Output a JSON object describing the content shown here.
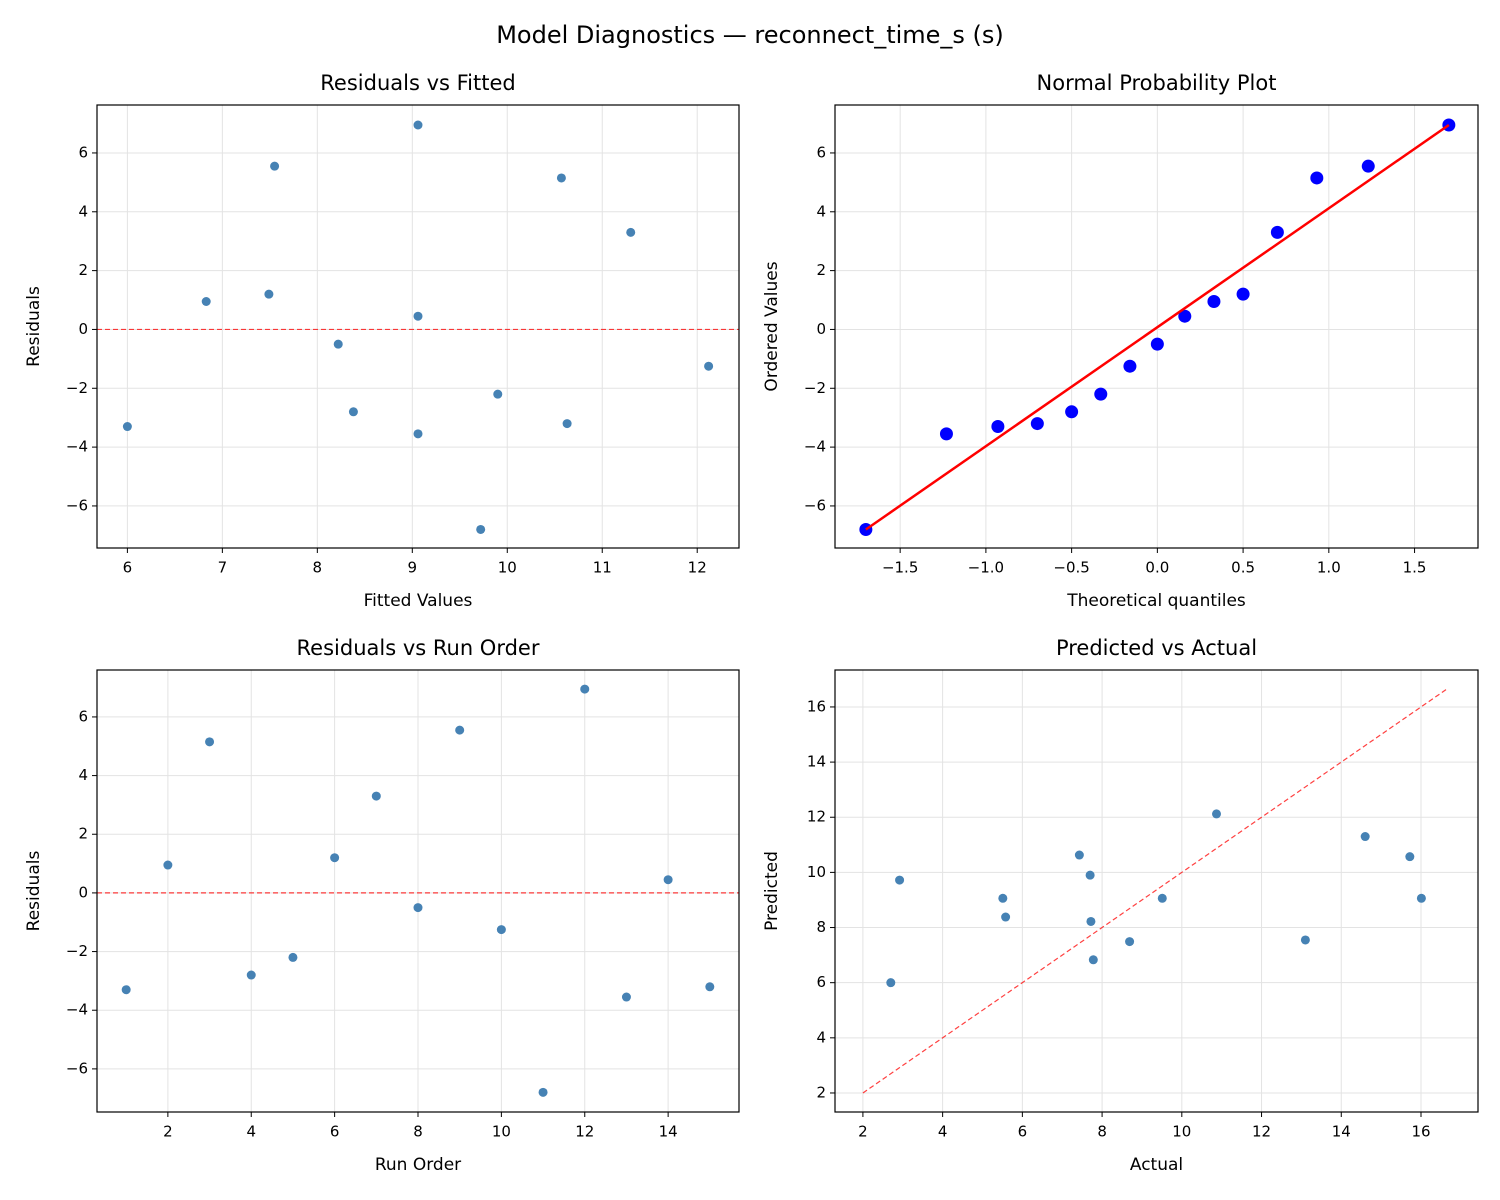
{
  "title": "Model Diagnostics — reconnect_time_s (s)",
  "chart_data": [
    {
      "type": "scatter",
      "title": "Residuals vs Fitted",
      "x_label": "Fitted Values",
      "y_label": "Residuals",
      "x": [
        6.0,
        6.83,
        10.57,
        8.38,
        9.9,
        7.49,
        11.3,
        8.22,
        7.55,
        12.12,
        9.72,
        9.06,
        9.06,
        9.06,
        10.63
      ],
      "y": [
        -3.3,
        0.95,
        5.15,
        -2.8,
        -2.2,
        1.2,
        3.3,
        -0.5,
        5.55,
        -1.25,
        -6.8,
        6.95,
        -3.55,
        0.45,
        -3.2
      ],
      "color": "#4682b4",
      "hline": 0,
      "hline_color": "#ff0000",
      "xlim": [
        5.68,
        12.44
      ],
      "xticks": [
        6,
        7,
        8,
        9,
        10,
        11,
        12
      ],
      "ylim": [
        -7.43,
        7.63
      ],
      "yticks": [
        {
          "value": -6,
          "label": "−6"
        },
        {
          "value": -4,
          "label": "−4"
        },
        {
          "value": -2,
          "label": "−2"
        },
        0,
        2,
        4,
        6
      ],
      "grid": true
    },
    {
      "type": "scatter",
      "title": "Normal Probability Plot",
      "x_label": "Theoretical quantiles",
      "y_label": "Ordered Values",
      "x": [
        -1.7,
        -1.23,
        -0.93,
        -0.7,
        -0.5,
        -0.33,
        -0.16,
        0,
        0.16,
        0.33,
        0.5,
        0.7,
        0.93,
        1.23,
        1.7
      ],
      "y": [
        -6.8,
        -3.55,
        -3.3,
        -3.2,
        -2.8,
        -2.2,
        -1.25,
        -0.5,
        0.45,
        0.95,
        1.2,
        3.3,
        5.15,
        5.55,
        6.95
      ],
      "color": "#0000ff",
      "fit_line": {
        "x": [
          -1.7,
          1.7
        ],
        "y": [
          -6.8,
          6.95
        ],
        "color": "#ff0000"
      },
      "xlim": [
        -1.88,
        1.87
      ],
      "xticks": [
        {
          "value": -1.5,
          "label": "−1.5"
        },
        {
          "value": -1.0,
          "label": "−1.0"
        },
        {
          "value": -0.5,
          "label": "−0.5"
        },
        {
          "value": 0,
          "label": "0.0"
        },
        0.5,
        {
          "value": 1.0,
          "label": "1.0"
        },
        1.5
      ],
      "ylim": [
        -7.43,
        7.63
      ],
      "yticks": [
        {
          "value": -6,
          "label": "−6"
        },
        {
          "value": -4,
          "label": "−4"
        },
        {
          "value": -2,
          "label": "−2"
        },
        0,
        2,
        4,
        6
      ],
      "grid": true
    },
    {
      "type": "scatter",
      "title": "Residuals vs Run Order",
      "x_label": "Run Order",
      "y_label": "Residuals",
      "x": [
        1,
        2,
        3,
        4,
        5,
        6,
        7,
        8,
        9,
        10,
        11,
        12,
        13,
        14,
        15
      ],
      "y": [
        -3.3,
        0.95,
        5.15,
        -2.8,
        -2.2,
        1.2,
        3.3,
        -0.5,
        5.55,
        -1.25,
        -6.8,
        6.95,
        -3.55,
        0.45,
        -3.2
      ],
      "color": "#4682b4",
      "hline": 0,
      "hline_color": "#ff0000",
      "xlim": [
        0.3,
        15.7
      ],
      "xticks": [
        2,
        4,
        6,
        8,
        10,
        12,
        14
      ],
      "ylim": [
        -7.47,
        7.6
      ],
      "yticks": [
        {
          "value": -6,
          "label": "−6"
        },
        {
          "value": -4,
          "label": "−4"
        },
        {
          "value": -2,
          "label": "−2"
        },
        0,
        2,
        4,
        6
      ],
      "grid": true
    },
    {
      "type": "scatter",
      "title": "Predicted vs Actual",
      "x_label": "Actual",
      "y_label": "Predicted",
      "x": [
        2.7,
        7.78,
        15.72,
        5.58,
        7.7,
        8.69,
        14.6,
        7.72,
        13.1,
        10.87,
        2.92,
        16.01,
        5.51,
        9.51,
        7.43
      ],
      "y": [
        6.0,
        6.83,
        10.57,
        8.38,
        9.9,
        7.49,
        11.3,
        8.22,
        7.55,
        12.12,
        9.72,
        9.06,
        9.06,
        9.06,
        10.63
      ],
      "color": "#4682b4",
      "ref_line": {
        "x": [
          2,
          16.65
        ],
        "y": [
          2,
          16.65
        ],
        "color": "#ff0000"
      },
      "xlim": [
        1.3,
        17.43
      ],
      "xticks": [
        2,
        4,
        6,
        8,
        10,
        12,
        14,
        16
      ],
      "ylim": [
        1.31,
        17.34
      ],
      "yticks": [
        2,
        4,
        6,
        8,
        10,
        12,
        14,
        16
      ],
      "grid": true
    }
  ]
}
